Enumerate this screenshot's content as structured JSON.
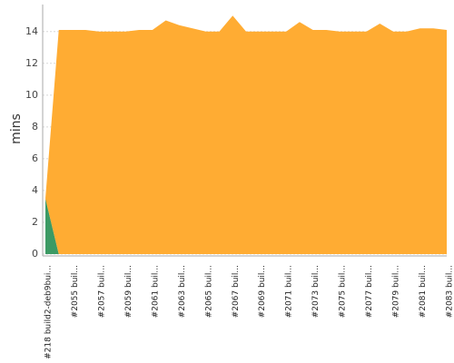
{
  "chart_data": {
    "type": "area",
    "stacked": true,
    "y_label": "mins",
    "categories": [
      "#218 build2-deb9bui...",
      null,
      "#2055 buil...",
      null,
      "#2057 buil...",
      null,
      "#2059 buil...",
      null,
      "#2061 buil...",
      null,
      "#2063 buil...",
      null,
      "#2065 buil...",
      null,
      "#2067 buil...",
      null,
      "#2069 buil...",
      null,
      "#2071 buil...",
      null,
      "#2073 buil...",
      null,
      "#2075 buil...",
      null,
      "#2077 buil...",
      null,
      "#2079 buil...",
      null,
      "#2081 buil...",
      null,
      "#2083 buil..."
    ],
    "series": [
      {
        "color": "#3c9a64",
        "values": [
          3.5,
          0,
          0,
          0,
          0,
          0,
          0,
          0,
          0,
          0,
          0,
          0,
          0,
          0,
          0,
          0,
          0,
          0,
          0,
          0,
          0,
          0,
          0,
          0,
          0,
          0,
          0,
          0,
          0,
          0,
          0
        ]
      },
      {
        "color": "#ffac33",
        "values": [
          0,
          14.1,
          14.1,
          14.1,
          14.0,
          14.0,
          14.0,
          14.1,
          14.1,
          14.7,
          14.4,
          14.2,
          14.0,
          14.0,
          15.0,
          14.0,
          14.0,
          14.0,
          14.0,
          14.6,
          14.1,
          14.1,
          14.0,
          14.0,
          14.0,
          14.5,
          14.0,
          14.0,
          14.2,
          14.2,
          14.1
        ]
      }
    ],
    "ylim": [
      0,
      15.7
    ],
    "yticks": [
      0,
      2,
      4,
      6,
      8,
      10,
      12,
      14
    ],
    "grid": true
  }
}
